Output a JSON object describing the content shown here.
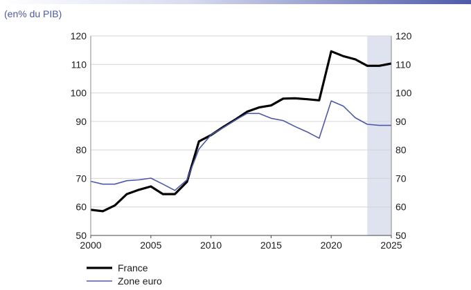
{
  "chart_data": {
    "type": "line",
    "subtitle": "(en% du PIB)",
    "xlabel": "",
    "ylabel": "",
    "xlim": [
      2000,
      2025
    ],
    "ylim": [
      50,
      120
    ],
    "x_ticks": [
      2000,
      2005,
      2010,
      2015,
      2020,
      2025
    ],
    "y_ticks": [
      50,
      60,
      70,
      80,
      90,
      100,
      110,
      120
    ],
    "y_axis_both_sides": true,
    "grid": "horizontal",
    "shaded_period": {
      "from": 2023,
      "to": 2025,
      "color": "#dfe2ef"
    },
    "legend_position": "bottom-left",
    "x": [
      2000,
      2001,
      2002,
      2003,
      2004,
      2005,
      2006,
      2007,
      2008,
      2009,
      2010,
      2011,
      2012,
      2013,
      2014,
      2015,
      2016,
      2017,
      2018,
      2019,
      2020,
      2021,
      2022,
      2023,
      2024,
      2025
    ],
    "series": [
      {
        "name": "France",
        "color": "#000000",
        "values": [
          59.0,
          58.5,
          60.5,
          64.5,
          66.0,
          67.2,
          64.5,
          64.5,
          68.8,
          83.0,
          85.2,
          88.0,
          90.6,
          93.4,
          94.9,
          95.6,
          98.0,
          98.1,
          97.8,
          97.4,
          114.6,
          112.9,
          111.8,
          109.5,
          109.5,
          110.3
        ]
      },
      {
        "name": "Zone euro",
        "color": "#4c58a6",
        "values": [
          69.0,
          68.0,
          68.0,
          69.2,
          69.5,
          70.1,
          68.0,
          65.8,
          69.5,
          80.3,
          85.3,
          87.8,
          90.4,
          92.8,
          92.8,
          91.1,
          90.3,
          88.2,
          86.3,
          84.1,
          97.2,
          95.4,
          91.3,
          89.0,
          88.6,
          88.6
        ]
      }
    ]
  }
}
